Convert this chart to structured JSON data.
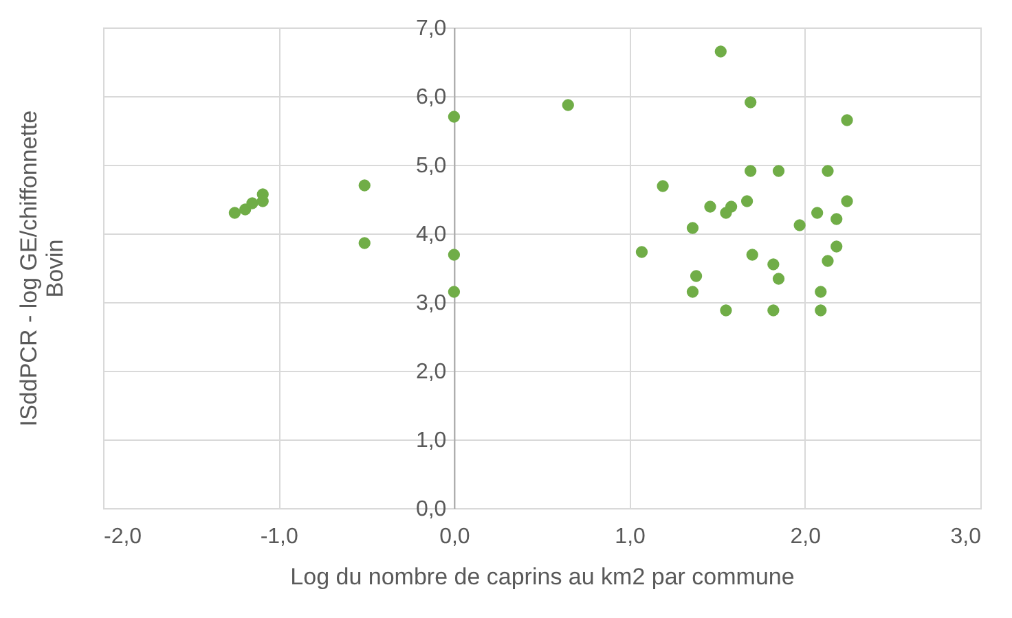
{
  "chart_data": {
    "type": "scatter",
    "xlabel": "Log du nombre de caprins au km2 par commune",
    "ylabel": "ISddPCR - log GE/chiffonnette\nBovin",
    "x": [
      -1.25,
      -1.19,
      -1.15,
      -1.09,
      -1.09,
      -0.51,
      -0.51,
      0.0,
      0.0,
      0.0,
      0.65,
      1.52,
      1.69,
      2.24,
      1.69,
      1.85,
      2.13,
      1.19,
      1.46,
      1.58,
      1.55,
      1.67,
      2.24,
      2.07,
      2.18,
      1.97,
      1.36,
      1.07,
      1.7,
      1.82,
      2.18,
      2.13,
      1.38,
      1.85,
      1.36,
      2.09,
      1.55,
      1.82,
      2.09
    ],
    "values": [
      4.3,
      4.35,
      4.44,
      4.57,
      4.47,
      4.7,
      3.86,
      5.7,
      3.69,
      3.15,
      5.87,
      6.65,
      5.91,
      5.65,
      4.91,
      4.91,
      4.91,
      4.69,
      4.39,
      4.39,
      4.3,
      4.47,
      4.47,
      4.3,
      4.21,
      4.12,
      4.08,
      3.73,
      3.69,
      3.55,
      3.81,
      3.6,
      3.38,
      3.34,
      3.15,
      3.15,
      2.88,
      2.88,
      2.88
    ],
    "color": "#70ad47",
    "marker": "circle",
    "xlim": [
      -2,
      3
    ],
    "ylim": [
      0,
      7
    ],
    "xticks": [
      {
        "value": -2,
        "label": "-2,0"
      },
      {
        "value": -1,
        "label": "-1,0"
      },
      {
        "value": 0,
        "label": "0,0"
      },
      {
        "value": 1,
        "label": "1,0"
      },
      {
        "value": 2,
        "label": "2,0"
      },
      {
        "value": 3,
        "label": "3,0"
      }
    ],
    "yticks": [
      {
        "value": 0,
        "label": "0,0"
      },
      {
        "value": 1,
        "label": "1,0"
      },
      {
        "value": 2,
        "label": "2,0"
      },
      {
        "value": 3,
        "label": "3,0"
      },
      {
        "value": 4,
        "label": "4,0"
      },
      {
        "value": 5,
        "label": "5,0"
      },
      {
        "value": 6,
        "label": "6,0"
      },
      {
        "value": 7,
        "label": "7,0"
      }
    ],
    "grid": true
  }
}
